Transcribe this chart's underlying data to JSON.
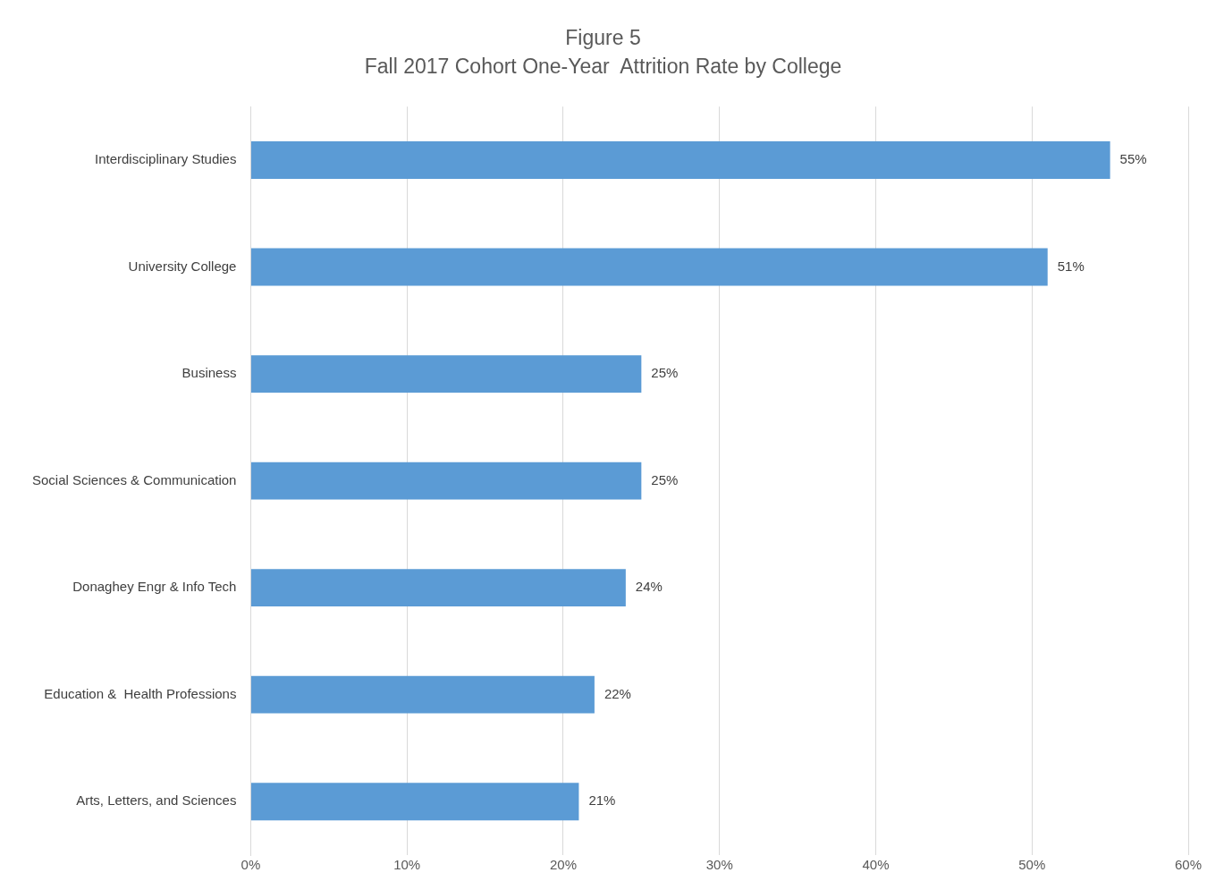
{
  "chart_data": {
    "type": "bar",
    "orientation": "horizontal",
    "title": "Figure 5",
    "subtitle": "Fall 2017 Cohort One-Year  Attrition Rate by College",
    "categories": [
      "Interdisciplinary Studies",
      "University College",
      "Business",
      "Social Sciences & Communication",
      "Donaghey Engr & Info Tech",
      "Education &  Health Professions",
      "Arts, Letters, and Sciences"
    ],
    "values": [
      55,
      51,
      25,
      25,
      24,
      22,
      21
    ],
    "value_labels": [
      "55%",
      "51%",
      "25%",
      "25%",
      "24%",
      "22%",
      "21%"
    ],
    "color": "#5b9bd5",
    "xlim": [
      0,
      60
    ],
    "xticks": [
      {
        "value": 0,
        "label": "0%"
      },
      {
        "value": 10,
        "label": "10%"
      },
      {
        "value": 20,
        "label": "20%"
      },
      {
        "value": 30,
        "label": "30%"
      },
      {
        "value": 40,
        "label": "40%"
      },
      {
        "value": 50,
        "label": "50%"
      },
      {
        "value": 60,
        "label": "60%"
      }
    ],
    "grid": "x",
    "legend": false
  }
}
